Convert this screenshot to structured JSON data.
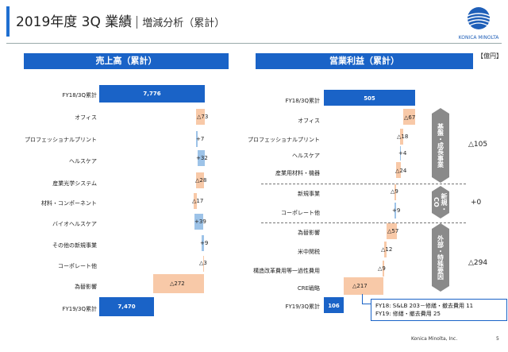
{
  "header": {
    "title": "2019年度 3Q 業績",
    "subtitle": "増減分析（累計）"
  },
  "logo": {
    "name": "KONICA MINOLTA"
  },
  "unit": "【億円】",
  "left": {
    "title": "売上高（累計）",
    "rows": [
      {
        "label": "FY18/3Q累計",
        "value": "7,776"
      },
      {
        "label": "オフィス",
        "value": "△73"
      },
      {
        "label": "プロフェッショナルプリント",
        "value": "+7"
      },
      {
        "label": "ヘルスケア",
        "value": "+32"
      },
      {
        "label": "産業光学システム",
        "value": "△28"
      },
      {
        "label": "材料・コンポーネント",
        "value": "△17"
      },
      {
        "label": "バイオヘルスケア",
        "value": "+39"
      },
      {
        "label": "その他の新規事業",
        "value": "+9"
      },
      {
        "label": "コーポレート他",
        "value": "△3"
      },
      {
        "label": "為替影響",
        "value": "△272"
      },
      {
        "label": "FY19/3Q累計",
        "value": "7,470"
      }
    ]
  },
  "right": {
    "title": "営業利益（累計）",
    "rows": [
      {
        "label": "FY18/3Q累計",
        "value": "505"
      },
      {
        "label": "オフィス",
        "value": "△67"
      },
      {
        "label": "プロフェッショナルプリント",
        "value": "△18"
      },
      {
        "label": "ヘルスケア",
        "value": "+4"
      },
      {
        "label": "産業用材料・機器",
        "value": "△24"
      },
      {
        "label": "新規事業",
        "value": "△9"
      },
      {
        "label": "コーポレート他",
        "value": "+9"
      },
      {
        "label": "為替影響",
        "value": "△57"
      },
      {
        "label": "米中関税",
        "value": "△12"
      },
      {
        "label": "構造改革費用等一過性費用",
        "value": "△9"
      },
      {
        "label": "CRE戦略",
        "value": "△217"
      },
      {
        "label": "FY19/3Q累計",
        "value": "106"
      }
    ],
    "groups": [
      {
        "label": "基盤・成長事業",
        "total": "△105"
      },
      {
        "label": "新規・CO",
        "total": "+0"
      },
      {
        "label": "外部・特殊要因",
        "total": "△294"
      }
    ],
    "note": [
      "FY18: S&LB 203－修繕・撤去費用 11",
      "FY19: 修繕・撤去費用 25"
    ]
  },
  "footer": {
    "company": "Konica Minolta, Inc.",
    "page": "5"
  }
}
